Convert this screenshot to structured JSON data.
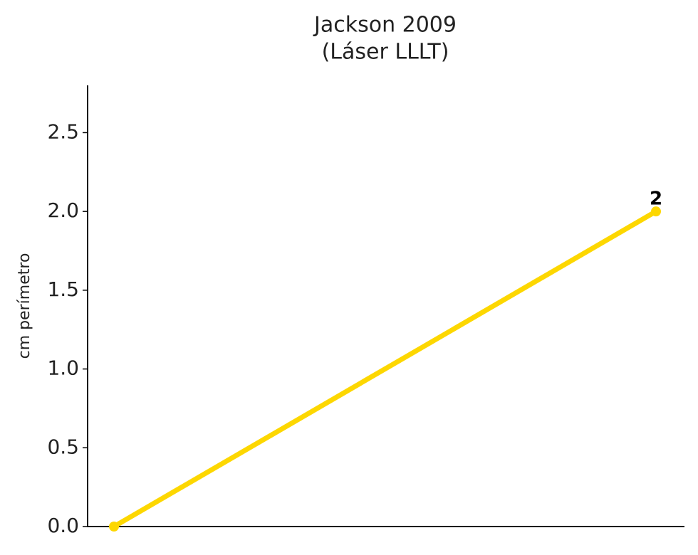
{
  "chart_data": {
    "type": "line",
    "title": [
      "Jackson 2009",
      "(Láser LLLT)"
    ],
    "y_label": "cm perímetro",
    "categories": [
      null,
      null
    ],
    "series": [
      {
        "name": "Jackson 2009",
        "color": "#fdd700",
        "values": [
          0,
          2
        ]
      }
    ],
    "ylim": [
      0,
      2.8
    ],
    "yticks": [
      {
        "value": 0,
        "label": "0.0"
      },
      0.5,
      {
        "value": 1,
        "label": "1.0"
      },
      1.5,
      {
        "value": 2,
        "label": "2.0"
      },
      2.5
    ]
  }
}
